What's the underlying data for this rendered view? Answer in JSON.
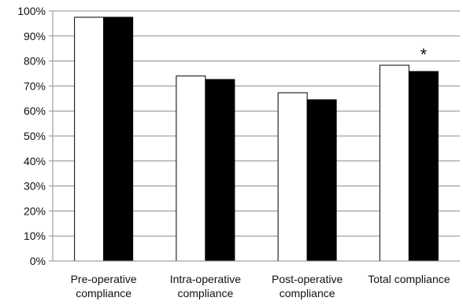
{
  "chart_data": {
    "type": "bar",
    "categories": [
      [
        "Pre-operative",
        "compliance"
      ],
      [
        "Intra-operative",
        "compliance"
      ],
      [
        "Post-operative",
        "compliance"
      ],
      [
        "Total compliance"
      ]
    ],
    "series": [
      {
        "fill": "#ffffff",
        "values": [
          97.5,
          74,
          67.3,
          78.3
        ]
      },
      {
        "fill": "#000000",
        "values": [
          97.5,
          72.6,
          64.5,
          75.8
        ]
      }
    ],
    "y_ticks": [
      "0%",
      "10%",
      "20%",
      "30%",
      "40%",
      "50%",
      "60%",
      "70%",
      "80%",
      "90%",
      "100%"
    ],
    "ylim": [
      0,
      100
    ],
    "grid": true,
    "annotations": [
      {
        "category_index": 3,
        "series_index": 1,
        "text": "*"
      }
    ],
    "title": "",
    "xlabel": "",
    "ylabel": ""
  }
}
